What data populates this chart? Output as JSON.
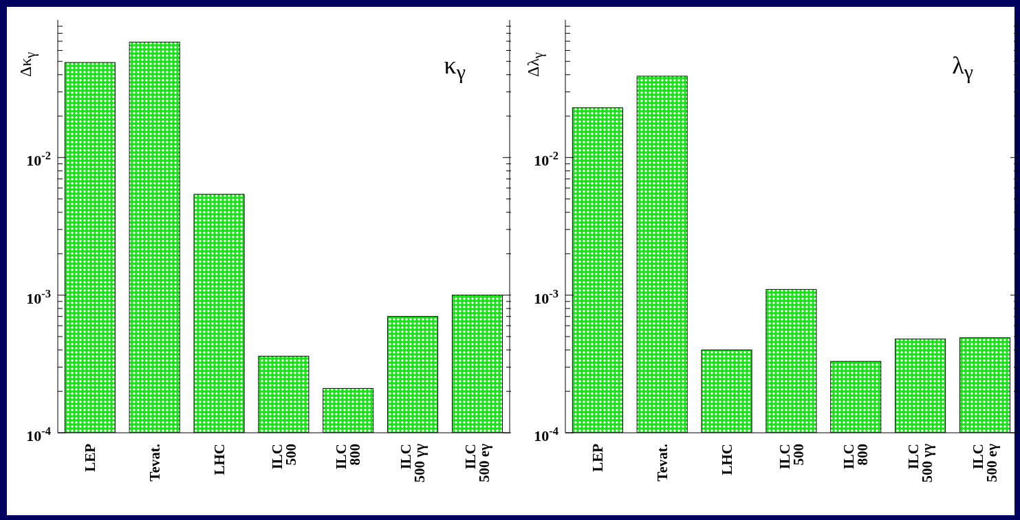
{
  "chart_data": [
    {
      "type": "bar",
      "ylabel": "Δκ$_{γ}$",
      "annotations": [
        "κ$_{γ}$"
      ],
      "categories": [
        "LEP",
        "Tevat.",
        "LHC",
        "ILC\n500",
        "ILC\n800",
        "ILC\n500 γγ",
        "ILC\n500 eγ"
      ],
      "values": [
        0.049,
        0.069,
        0.0054,
        0.00036,
        0.00021,
        0.0007,
        0.001
      ],
      "color": "#22dd22",
      "log": "y",
      "ylim": [
        0.0001,
        0.1
      ],
      "yticks": [
        {
          "value": 0.0001,
          "label": "10$^{-4}$"
        },
        {
          "value": 0.0002,
          "label": null
        },
        {
          "value": 0.0003,
          "label": null
        },
        {
          "value": 0.0004,
          "label": null
        },
        {
          "value": 0.0005,
          "label": null
        },
        {
          "value": 0.0006,
          "label": null
        },
        {
          "value": 0.0007,
          "label": null
        },
        {
          "value": 0.0008,
          "label": null
        },
        {
          "value": 0.0009,
          "label": null
        },
        {
          "value": 0.001,
          "label": "10$^{-3}$"
        },
        {
          "value": 0.002,
          "label": null
        },
        {
          "value": 0.003,
          "label": null
        },
        {
          "value": 0.004,
          "label": null
        },
        {
          "value": 0.005,
          "label": null
        },
        {
          "value": 0.006,
          "label": null
        },
        {
          "value": 0.007,
          "label": null
        },
        {
          "value": 0.008,
          "label": null
        },
        {
          "value": 0.009,
          "label": null
        },
        {
          "value": 0.01,
          "label": "10$^{-2}$"
        },
        {
          "value": 0.02,
          "label": null
        },
        {
          "value": 0.03,
          "label": null
        },
        {
          "value": 0.04,
          "label": null
        },
        {
          "value": 0.05,
          "label": null
        },
        {
          "value": 0.06,
          "label": null
        },
        {
          "value": 0.07,
          "label": null
        },
        {
          "value": 0.08,
          "label": null
        },
        {
          "value": 0.09,
          "label": null
        }
      ]
    },
    {
      "type": "bar",
      "ylabel": "Δλ$_{γ}$",
      "annotations": [
        "λ$_{γ}$"
      ],
      "categories": [
        "LEP",
        "Tevat.",
        "LHC",
        "ILC\n500",
        "ILC\n800",
        "ILC\n500 γγ",
        "ILC\n500 eγ"
      ],
      "values": [
        0.023,
        0.039,
        0.0004,
        0.0011,
        0.00033,
        0.00048,
        0.00049
      ],
      "color": "#22dd22",
      "log": "y",
      "ylim": [
        0.0001,
        0.1
      ],
      "yticks": [
        {
          "value": 0.0001,
          "label": "10$^{-4}$"
        },
        {
          "value": 0.0002,
          "label": null
        },
        {
          "value": 0.0003,
          "label": null
        },
        {
          "value": 0.0004,
          "label": null
        },
        {
          "value": 0.0005,
          "label": null
        },
        {
          "value": 0.0006,
          "label": null
        },
        {
          "value": 0.0007,
          "label": null
        },
        {
          "value": 0.0008,
          "label": null
        },
        {
          "value": 0.0009,
          "label": null
        },
        {
          "value": 0.001,
          "label": "10$^{-3}$"
        },
        {
          "value": 0.002,
          "label": null
        },
        {
          "value": 0.003,
          "label": null
        },
        {
          "value": 0.004,
          "label": null
        },
        {
          "value": 0.005,
          "label": null
        },
        {
          "value": 0.006,
          "label": null
        },
        {
          "value": 0.007,
          "label": null
        },
        {
          "value": 0.008,
          "label": null
        },
        {
          "value": 0.009,
          "label": null
        },
        {
          "value": 0.01,
          "label": "10$^{-2}$"
        },
        {
          "value": 0.02,
          "label": null
        },
        {
          "value": 0.03,
          "label": null
        },
        {
          "value": 0.04,
          "label": null
        },
        {
          "value": 0.05,
          "label": null
        },
        {
          "value": 0.06,
          "label": null
        },
        {
          "value": 0.07,
          "label": null
        },
        {
          "value": 0.08,
          "label": null
        },
        {
          "value": 0.09,
          "label": null
        }
      ]
    }
  ]
}
